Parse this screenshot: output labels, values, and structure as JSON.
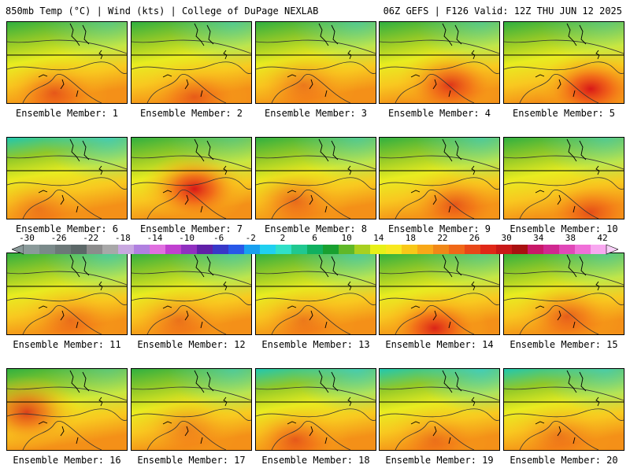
{
  "header": {
    "left_title": "850mb Temp (°C) | Wind (kts) | College of DuPage NEXLAB",
    "right_title": "06Z GEFS | F126 Valid: 12Z THU JUN 12 2025"
  },
  "panels": [
    {
      "label": "Ensemble Member: 1"
    },
    {
      "label": "Ensemble Member: 2"
    },
    {
      "label": "Ensemble Member: 3"
    },
    {
      "label": "Ensemble Member: 4"
    },
    {
      "label": "Ensemble Member: 5"
    },
    {
      "label": "Ensemble Member: 6"
    },
    {
      "label": "Ensemble Member: 7"
    },
    {
      "label": "Ensemble Member: 8"
    },
    {
      "label": "Ensemble Member: 9"
    },
    {
      "label": "Ensemble Member: 10"
    },
    {
      "label": "Ensemble Member: 11"
    },
    {
      "label": "Ensemble Member: 12"
    },
    {
      "label": "Ensemble Member: 13"
    },
    {
      "label": "Ensemble Member: 14"
    },
    {
      "label": "Ensemble Member: 15"
    },
    {
      "label": "Ensemble Member: 16"
    },
    {
      "label": "Ensemble Member: 17"
    },
    {
      "label": "Ensemble Member: 18"
    },
    {
      "label": "Ensemble Member: 19"
    },
    {
      "label": "Ensemble Member: 20"
    }
  ],
  "colorbar": {
    "ticks": [
      "-30",
      "-26",
      "-22",
      "-18",
      "-14",
      "-10",
      "-6",
      "-2",
      "2",
      "6",
      "10",
      "14",
      "18",
      "22",
      "26",
      "30",
      "34",
      "38",
      "42"
    ],
    "colors": [
      "#8a9a9a",
      "#7a8a8a",
      "#6c7878",
      "#5c6868",
      "#8c8c8c",
      "#a8a8a8",
      "#c8a8e0",
      "#b080e0",
      "#e070e0",
      "#c040d0",
      "#9030c0",
      "#6020a8",
      "#3838c8",
      "#2858e8",
      "#18a0f0",
      "#20d0f0",
      "#30e0c8",
      "#20c890",
      "#10b060",
      "#18a030",
      "#60b828",
      "#a8d020",
      "#e8f018",
      "#f8e820",
      "#f8c818",
      "#f8a818",
      "#f08818",
      "#f06818",
      "#e84818",
      "#e02818",
      "#c81818",
      "#a81010",
      "#c81868",
      "#d02890",
      "#e048b8",
      "#f070d8",
      "#f8a8f0"
    ]
  }
}
